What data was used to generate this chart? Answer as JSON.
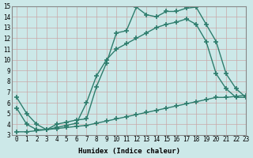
{
  "line1_x": [
    0,
    1,
    2,
    3,
    4,
    5,
    6,
    7,
    8,
    9,
    10,
    11,
    12,
    13,
    14,
    15,
    16,
    17,
    18,
    19,
    20,
    21,
    22,
    23
  ],
  "line1_y": [
    6.5,
    5.0,
    4.0,
    3.5,
    4.0,
    4.2,
    4.4,
    4.5,
    7.5,
    9.7,
    12.5,
    12.7,
    14.9,
    14.2,
    14.0,
    14.5,
    14.5,
    14.8,
    14.9,
    13.3,
    11.7,
    8.7,
    7.3,
    6.5
  ],
  "line2_x": [
    0,
    1,
    2,
    3,
    4,
    5,
    6,
    7,
    8,
    9,
    10,
    11,
    12,
    13,
    14,
    15,
    16,
    17,
    18,
    19,
    20,
    21,
    22,
    23
  ],
  "line2_y": [
    5.5,
    4.0,
    3.5,
    3.5,
    3.7,
    3.9,
    4.1,
    6.0,
    8.5,
    10.0,
    11.0,
    11.5,
    12.0,
    12.5,
    13.0,
    13.3,
    13.5,
    13.8,
    13.3,
    11.7,
    8.7,
    7.3,
    6.5,
    6.5
  ],
  "line3_x": [
    0,
    1,
    2,
    3,
    4,
    5,
    6,
    7,
    8,
    9,
    10,
    11,
    12,
    13,
    14,
    15,
    16,
    17,
    18,
    19,
    20,
    21,
    22,
    23
  ],
  "line3_y": [
    3.3,
    3.3,
    3.4,
    3.5,
    3.6,
    3.7,
    3.8,
    3.9,
    4.1,
    4.3,
    4.5,
    4.7,
    4.9,
    5.1,
    5.3,
    5.5,
    5.7,
    5.9,
    6.1,
    6.3,
    6.5,
    6.5,
    6.6,
    6.7
  ],
  "color": "#2e7d6d",
  "bg_color": "#cce8e8",
  "grid_color": "#b0d0d0",
  "xlabel": "Humidex (Indice chaleur)",
  "ylim": [
    3,
    15
  ],
  "xlim": [
    -0.5,
    23
  ],
  "yticks": [
    3,
    4,
    5,
    6,
    7,
    8,
    9,
    10,
    11,
    12,
    13,
    14,
    15
  ],
  "xticks": [
    0,
    1,
    2,
    3,
    4,
    5,
    6,
    7,
    8,
    9,
    10,
    11,
    12,
    13,
    14,
    15,
    16,
    17,
    18,
    19,
    20,
    21,
    22,
    23
  ],
  "marker": "+",
  "marker_size": 4,
  "line_width": 1.0,
  "font_size": 6.5
}
